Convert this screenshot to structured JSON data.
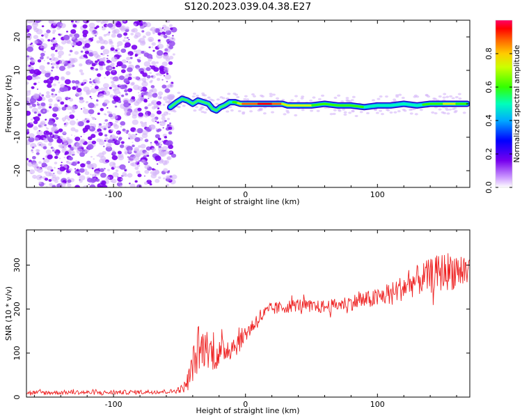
{
  "title": "S120.2023.039.04.38.E27",
  "colors": {
    "snr_line": "#ee2222",
    "noise_dots": "#8a2be2",
    "colorbar_top": "#ff0066"
  },
  "chart_data": [
    {
      "type": "heatmap",
      "title": "S120.2023.039.04.38.E27",
      "xlabel": "Height of straight line (km)",
      "ylabel": "Frequency (Hz)",
      "xlim": [
        -166,
        170
      ],
      "ylim": [
        -25,
        25
      ],
      "x_ticks": [
        -100,
        0,
        100
      ],
      "y_ticks": [
        -20,
        -10,
        0,
        10,
        20
      ],
      "x_tick_labels": [
        "-100",
        "0",
        "100"
      ],
      "y_tick_labels": [
        "-20",
        "-10",
        "0",
        "10",
        "20"
      ],
      "colorbar": {
        "label": "Normalized spectral amplitude",
        "range": [
          0.0,
          1.0
        ],
        "ticks": [
          0.0,
          0.2,
          0.4,
          0.6,
          0.8
        ],
        "tick_labels": [
          "0.0",
          "0.2",
          "0.4",
          "0.6",
          "0.8"
        ]
      },
      "noise_region_x": [
        -166,
        -57
      ],
      "signal_trace": {
        "x": [
          -57,
          -52,
          -48,
          -44,
          -40,
          -36,
          -32,
          -28,
          -25,
          -22,
          -19,
          -16,
          -12,
          -8,
          -4,
          0,
          10,
          20,
          28,
          32,
          40,
          50,
          60,
          70,
          80,
          90,
          100,
          110,
          120,
          130,
          140,
          150,
          160,
          168
        ],
        "freq": [
          -1.0,
          0.5,
          1.5,
          1.0,
          0.0,
          1.0,
          0.5,
          0.0,
          -1.5,
          -2.0,
          -1.0,
          -0.5,
          0.5,
          0.5,
          0.0,
          0.0,
          0.0,
          0.0,
          0.0,
          -0.5,
          -0.5,
          -0.5,
          0.0,
          -0.5,
          -0.5,
          -1.0,
          -0.5,
          -0.5,
          0.0,
          -0.5,
          0.0,
          0.0,
          0.0,
          0.0
        ],
        "amplitude": [
          0.3,
          0.45,
          0.6,
          0.55,
          0.5,
          0.6,
          0.55,
          0.5,
          0.4,
          0.35,
          0.5,
          0.55,
          0.6,
          0.7,
          0.8,
          0.95,
          1.0,
          1.0,
          0.85,
          0.75,
          0.8,
          0.75,
          0.7,
          0.65,
          0.7,
          0.65,
          0.6,
          0.6,
          0.65,
          0.6,
          0.7,
          0.75,
          0.75,
          0.7
        ]
      }
    },
    {
      "type": "line",
      "xlabel": "Height of straight line (km)",
      "ylabel": "SNR (10 * v/v)",
      "xlim": [
        -166,
        170
      ],
      "ylim": [
        0,
        380
      ],
      "x_ticks": [
        -100,
        0,
        100
      ],
      "y_ticks": [
        0,
        100,
        200,
        300
      ],
      "x_tick_labels": [
        "-100",
        "0",
        "100"
      ],
      "y_tick_labels": [
        "0",
        "100",
        "200",
        "300"
      ],
      "series": [
        {
          "x": [
            -166,
            -150,
            -130,
            -110,
            -90,
            -70,
            -55,
            -47,
            -43,
            -40,
            -35,
            -30,
            -25,
            -20,
            -15,
            -10,
            -5,
            0,
            5,
            10,
            15,
            20,
            30,
            40,
            50,
            60,
            70,
            80,
            90,
            100,
            110,
            120,
            130,
            140,
            150,
            160,
            170
          ],
          "values": [
            10,
            10,
            11,
            10,
            11,
            12,
            13,
            20,
            40,
            75,
            105,
            115,
            100,
            95,
            110,
            115,
            125,
            145,
            160,
            180,
            190,
            200,
            205,
            210,
            205,
            205,
            210,
            215,
            220,
            225,
            235,
            250,
            265,
            275,
            285,
            290,
            285
          ],
          "noise_amplitude": [
            5,
            5,
            5,
            5,
            5,
            5,
            5,
            10,
            25,
            40,
            50,
            45,
            40,
            35,
            30,
            30,
            25,
            20,
            20,
            20,
            18,
            15,
            15,
            15,
            15,
            15,
            15,
            18,
            20,
            22,
            25,
            30,
            35,
            40,
            45,
            45,
            45
          ]
        }
      ]
    }
  ]
}
